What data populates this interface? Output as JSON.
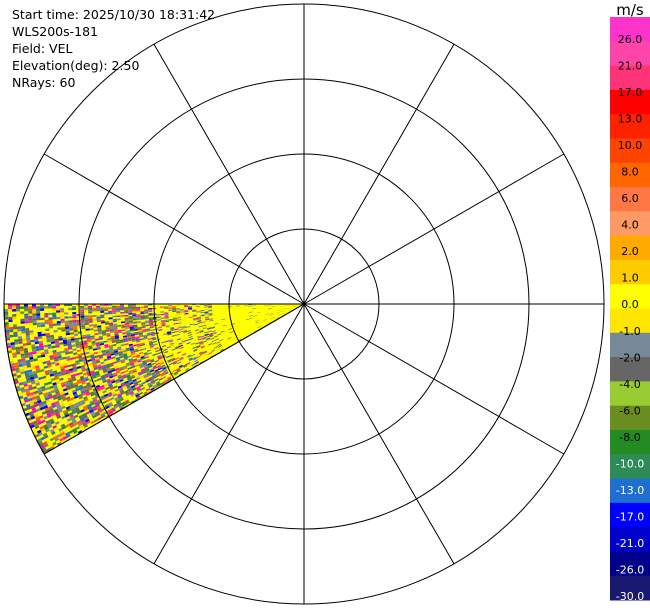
{
  "info": {
    "start_time": "Start time: 2025/10/30 18:31:42",
    "instrument": "WLS200s-181",
    "field": "Field: VEL",
    "elevation": "Elevation(deg): 2.50",
    "nrays": "NRays: 60"
  },
  "chart_data": {
    "type": "heatmap",
    "projection": "polar (PPI)",
    "title": "",
    "field": "VEL",
    "elevation_deg": 2.5,
    "n_rays": 60,
    "range_rings": 4,
    "spoke_interval_deg": 30,
    "sector_azimuth_deg": [
      240,
      270
    ],
    "colorbar": {
      "unit": "m/s",
      "tick_labels": [
        "26.0",
        "21.0",
        "17.0",
        "13.0",
        "10.0",
        "8.0",
        "6.0",
        "4.0",
        "2.0",
        "1.0",
        "0.0",
        "-1.0",
        "-2.0",
        "-4.0",
        "-6.0",
        "-8.0",
        "-10.0",
        "-13.0",
        "-17.0",
        "-21.0",
        "-26.0",
        "-30.0"
      ],
      "colors": [
        "#ff33cc",
        "#ff44aa",
        "#ff3377",
        "#ff0000",
        "#ff2200",
        "#ff4400",
        "#ff6600",
        "#ff7744",
        "#ff9966",
        "#ffaa00",
        "#ffcc00",
        "#ffff00",
        "#ffe600",
        "#778899",
        "#666666",
        "#99cc33",
        "#6b8e23",
        "#228b22",
        "#2e8b57",
        "#1e6fd0",
        "#0000ff",
        "#0000cc",
        "#00008b",
        "#191970"
      ]
    },
    "sector_colors": {
      "near_range": [
        "#ffff00",
        "#ffee00",
        "#778899",
        "#666666"
      ],
      "far_range": [
        "#ffff00",
        "#ff00cc",
        "#0000ff",
        "#778899",
        "#666666",
        "#ff6600",
        "#ff3377",
        "#6b8e23",
        "#228b22",
        "#ffcc00",
        "#1e6fd0"
      ]
    }
  }
}
